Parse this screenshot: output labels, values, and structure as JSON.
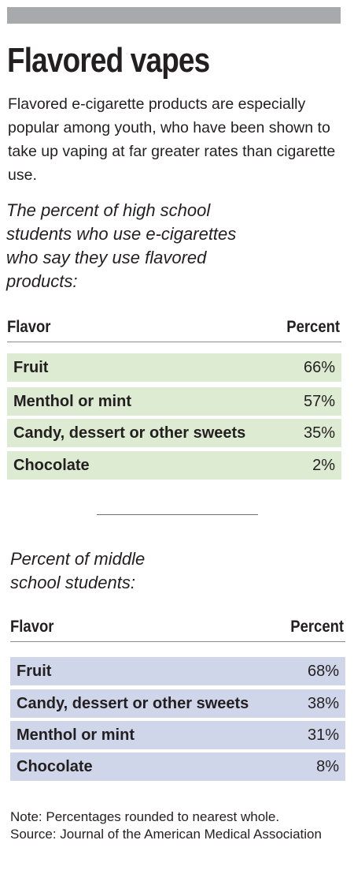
{
  "title": "Flavored vapes",
  "intro": "Flavored e-cigarette products are especially popular among youth, who have been shown to take up vaping at far greater rates than cigarette use.",
  "chart_data": [
    {
      "type": "table",
      "title": "The percent of high school students who use e-cigarettes who say they use flavored products:",
      "columns": [
        "Flavor",
        "Percent"
      ],
      "rows": [
        {
          "label": "Fruit",
          "display": "66%",
          "value": 66
        },
        {
          "label": "Menthol or mint",
          "display": "57%",
          "value": 57
        },
        {
          "label": "Candy, dessert or other sweets",
          "display": "35%",
          "value": 35
        },
        {
          "label": "Chocolate",
          "display": "2%",
          "value": 2
        }
      ],
      "row_color": "#dcebd2"
    },
    {
      "type": "table",
      "title": "Percent of middle school students:",
      "columns": [
        "Flavor",
        "Percent"
      ],
      "rows": [
        {
          "label": "Fruit",
          "display": "68%",
          "value": 68
        },
        {
          "label": "Candy, dessert or other sweets",
          "display": "38%",
          "value": 38
        },
        {
          "label": "Menthol or mint",
          "display": "31%",
          "value": 31
        },
        {
          "label": "Chocolate",
          "display": "8%",
          "value": 8
        }
      ],
      "row_color": "#cfd6e9"
    }
  ],
  "notes": {
    "note": "Note: Percentages rounded to nearest whole.",
    "source": "Source: Journal of the American Medical Association"
  },
  "colors": {
    "header_bar": "#a7a9ac",
    "text": "#231f20"
  }
}
